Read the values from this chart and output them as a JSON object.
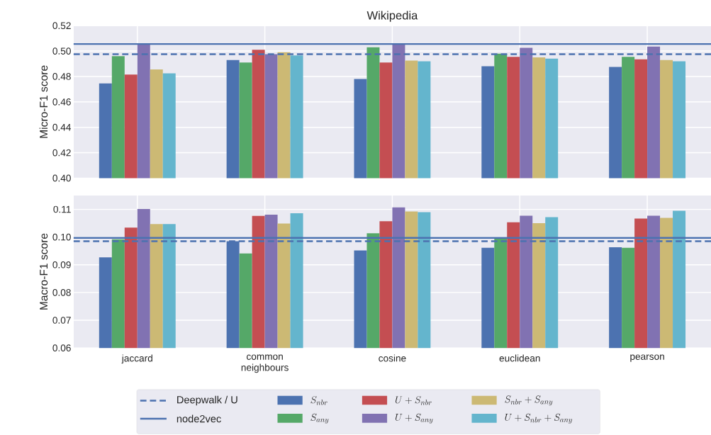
{
  "chart_data": [
    {
      "type": "bar",
      "title": "Wikipedia",
      "ylabel": "Micro-F1 score",
      "categories": [
        null,
        null,
        null,
        null,
        null
      ],
      "series": [
        {
          "color": "#4c72b0",
          "values": [
            0.4745,
            0.493,
            0.478,
            0.488,
            0.4875
          ]
        },
        {
          "color": "#55a868",
          "values": [
            0.496,
            0.491,
            0.503,
            0.498,
            0.4955
          ]
        },
        {
          "color": "#c44e52",
          "values": [
            0.4815,
            0.501,
            0.491,
            0.4955,
            0.4935
          ]
        },
        {
          "color": "#8172b2",
          "values": [
            0.5055,
            0.4975,
            0.505,
            0.5025,
            0.5035
          ]
        },
        {
          "color": "#ccb974",
          "values": [
            0.4855,
            0.499,
            0.4925,
            0.495,
            0.493
          ]
        },
        {
          "color": "#64b5cd",
          "values": [
            0.4825,
            0.4965,
            0.492,
            0.494,
            0.492
          ]
        }
      ],
      "ref_lines": [
        {
          "axis": "y",
          "value": 0.4975,
          "color": "#4c72b0",
          "line_style": "dashed"
        },
        {
          "axis": "y",
          "value": 0.5055,
          "color": "#4c72b0",
          "line_style": "solid"
        }
      ],
      "ylim": [
        0.4,
        0.52
      ],
      "yticks": [
        {
          "value": 0.4,
          "label": "0.40"
        },
        0.42,
        0.44,
        0.46,
        0.48,
        {
          "value": 0.5,
          "label": "0.50"
        },
        0.52
      ],
      "grid": true,
      "tick_labels": "y"
    },
    {
      "type": "bar",
      "ylabel": "Macro-F1 score",
      "categories": [
        "jaccard",
        "common neighbours",
        "cosine",
        "euclidean",
        "pearson"
      ],
      "series": [
        {
          "name": "S_{nbr}",
          "color": "#4c72b0",
          "values": [
            0.0927,
            0.0985,
            0.0952,
            0.0961,
            0.0963
          ]
        },
        {
          "name": "S_{any}",
          "color": "#55a868",
          "values": [
            0.0992,
            0.0941,
            0.1014,
            0.0998,
            0.0961
          ]
        },
        {
          "name": "U+S_{nbr}",
          "color": "#c44e52",
          "values": [
            0.1034,
            0.1076,
            0.1057,
            0.1053,
            0.1067
          ]
        },
        {
          "name": "U+S_{any}",
          "color": "#8172b2",
          "values": [
            0.1101,
            0.1081,
            0.1107,
            0.1077,
            0.1077
          ]
        },
        {
          "name": "S_{nbr}+S_{any}",
          "color": "#ccb974",
          "values": [
            0.1047,
            0.1049,
            0.1092,
            0.105,
            0.1069
          ]
        },
        {
          "name": "U+S_{nbr}+S_{any}",
          "color": "#64b5cd",
          "values": [
            0.1047,
            0.1086,
            0.109,
            0.1072,
            0.1095
          ]
        }
      ],
      "ref_lines": [
        {
          "axis": "y",
          "value": 0.0985,
          "label": "Deepwalk / U",
          "color": "#4c72b0",
          "line_style": "dashed"
        },
        {
          "axis": "y",
          "value": 0.0997,
          "label": "node2vec",
          "color": "#4c72b0",
          "line_style": "solid"
        }
      ],
      "ylim": [
        0.06,
        0.115
      ],
      "yticks": [
        0.06,
        0.07,
        0.08,
        0.09,
        {
          "value": 0.1,
          "label": "0.10"
        },
        0.11
      ],
      "grid": true,
      "legend": "bottom"
    }
  ]
}
